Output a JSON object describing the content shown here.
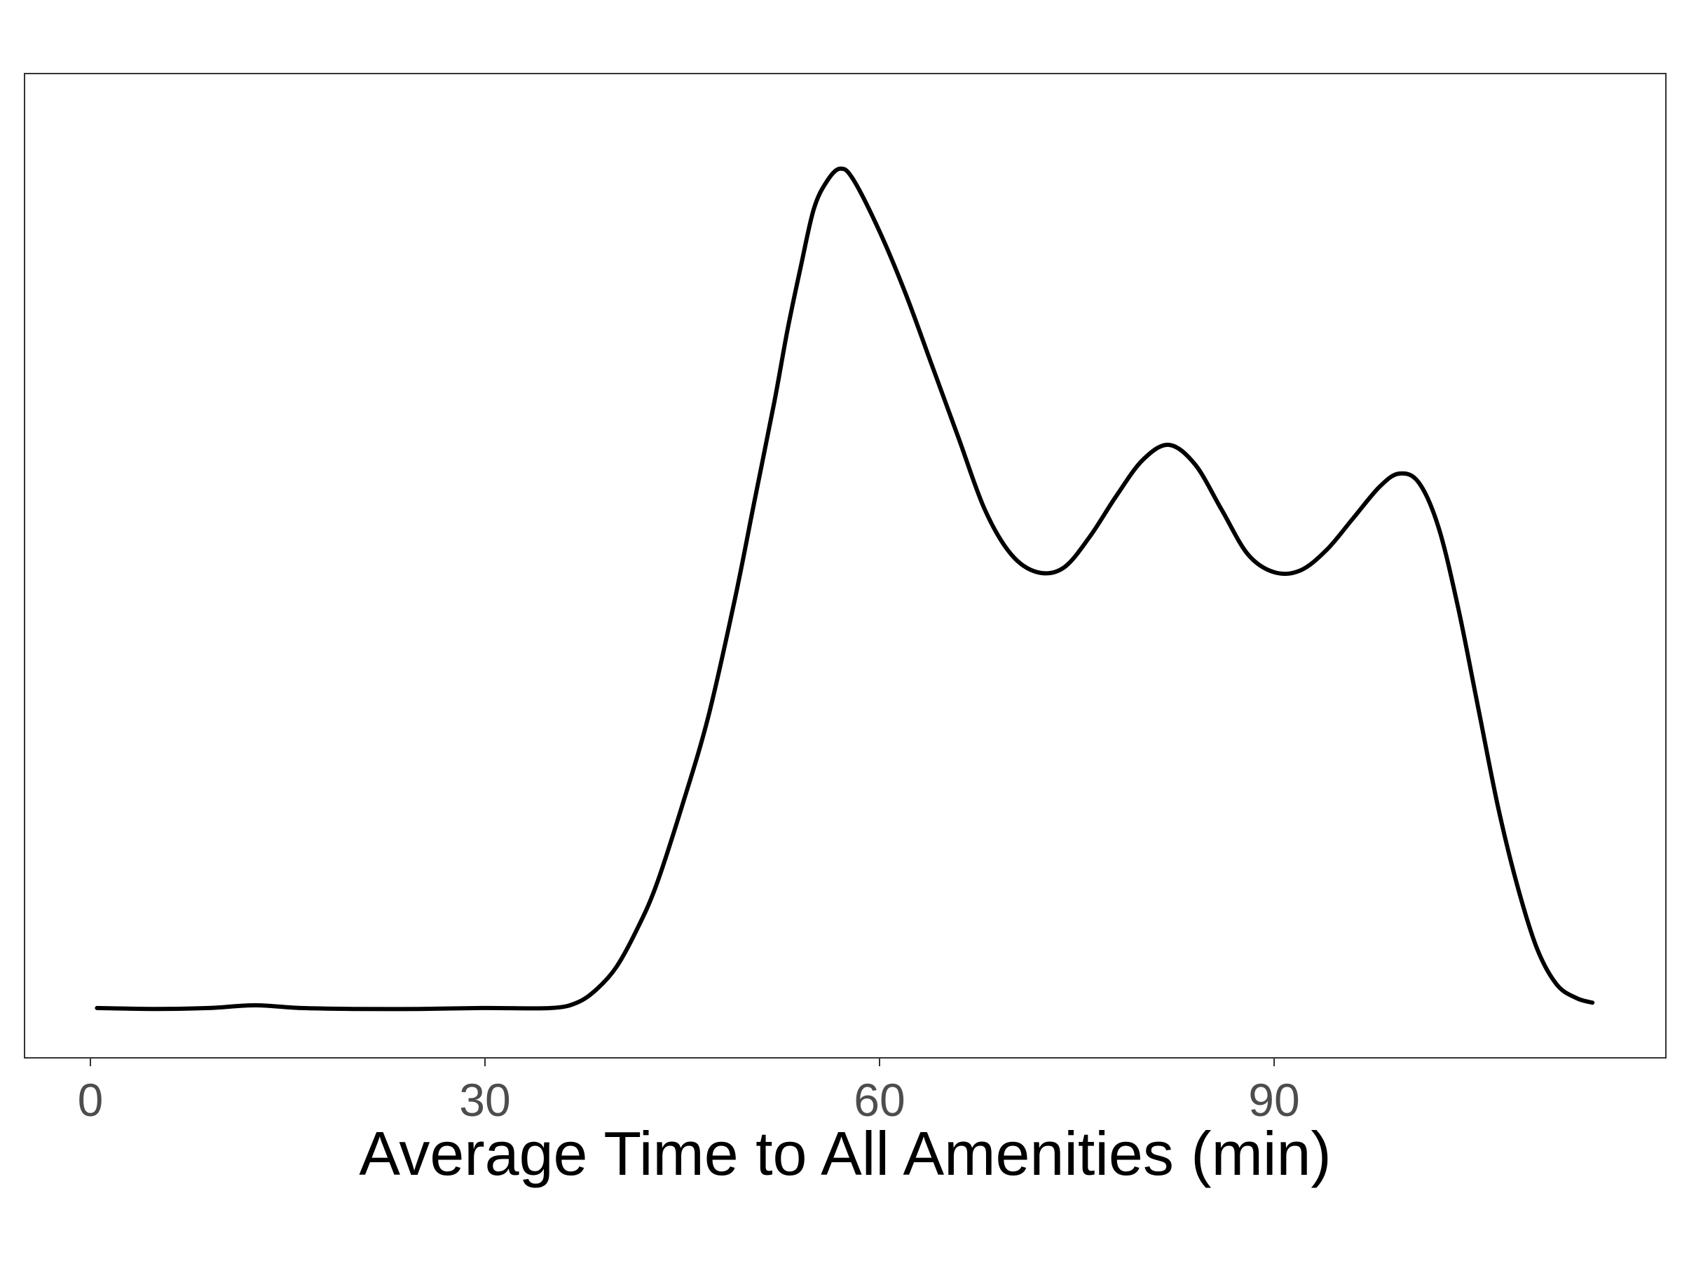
{
  "chart_data": {
    "type": "line",
    "title": "",
    "xlabel": "Average Time to All Amenities (min)",
    "ylabel": "",
    "xlim": [
      -5,
      120
    ],
    "ylim": [
      0,
      1
    ],
    "x_ticks": [
      0,
      30,
      60,
      90
    ],
    "x_tick_labels": [
      "0",
      "30",
      "60",
      "90"
    ],
    "y_ticks": [],
    "grid": false,
    "legend": "none",
    "line_color": "#000000",
    "series": [
      {
        "x": [
          0.5,
          5,
          9,
          12.5,
          16,
          20,
          25,
          30,
          35,
          37,
          38.5,
          40,
          41.5,
          43,
          45,
          47,
          49,
          50.5,
          52,
          53,
          54,
          55,
          56,
          57,
          58,
          60,
          62,
          64,
          66,
          68,
          70,
          72,
          74,
          76,
          78,
          80,
          82,
          84,
          86,
          88,
          90,
          92,
          94,
          96,
          98,
          99.5,
          101,
          102.5,
          104,
          105.5,
          107,
          108.5,
          110,
          111.5,
          113,
          114.2
        ],
        "y": [
          0.004,
          0.003,
          0.004,
          0.007,
          0.004,
          0.003,
          0.003,
          0.004,
          0.004,
          0.01,
          0.025,
          0.05,
          0.09,
          0.14,
          0.23,
          0.33,
          0.46,
          0.57,
          0.68,
          0.76,
          0.83,
          0.895,
          0.926,
          0.94,
          0.928,
          0.87,
          0.8,
          0.72,
          0.64,
          0.56,
          0.51,
          0.49,
          0.495,
          0.53,
          0.575,
          0.615,
          0.632,
          0.61,
          0.56,
          0.51,
          0.49,
          0.492,
          0.515,
          0.55,
          0.585,
          0.6,
          0.59,
          0.54,
          0.45,
          0.34,
          0.23,
          0.14,
          0.07,
          0.03,
          0.015,
          0.01
        ]
      }
    ]
  }
}
